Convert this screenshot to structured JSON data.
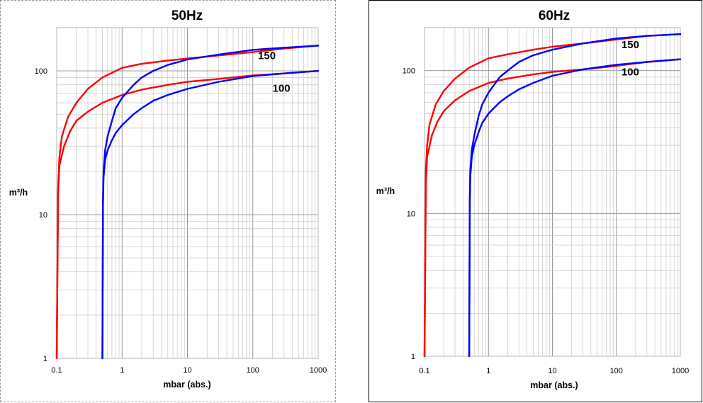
{
  "chart_data": [
    {
      "type": "line",
      "title": "50Hz",
      "xlabel": "mbar (abs.)",
      "ylabel": "m³/h",
      "xscale": "log",
      "yscale": "log",
      "xlim": [
        0.1,
        1000
      ],
      "ylim": [
        1,
        200
      ],
      "grid": true,
      "x_ticks": [
        "0.1",
        "1",
        "10",
        "100",
        "1000"
      ],
      "y_ticks": [
        "1",
        "10",
        "100"
      ],
      "annotations": [
        {
          "text": "150",
          "x": 120,
          "y": 128
        },
        {
          "text": "100",
          "x": 200,
          "y": 76
        }
      ],
      "series": [
        {
          "color": "#ff0000",
          "x": [
            0.1,
            0.105,
            0.11,
            0.12,
            0.15,
            0.2,
            0.3,
            0.5,
            1,
            2,
            5,
            10,
            30,
            100,
            300,
            1000
          ],
          "y": [
            1,
            15,
            25,
            35,
            48,
            60,
            75,
            90,
            105,
            112,
            118,
            122,
            128,
            135,
            143,
            150
          ]
        },
        {
          "color": "#ff0000",
          "x": [
            0.1,
            0.105,
            0.11,
            0.13,
            0.16,
            0.2,
            0.3,
            0.5,
            1,
            2,
            5,
            10,
            30,
            100,
            300,
            1000
          ],
          "y": [
            1,
            14,
            22,
            30,
            38,
            45,
            52,
            60,
            68,
            74,
            80,
            84,
            88,
            93,
            96,
            100
          ]
        },
        {
          "color": "#0000ff",
          "x": [
            0.5,
            0.51,
            0.52,
            0.55,
            0.6,
            0.7,
            0.8,
            1,
            1.5,
            2,
            3,
            5,
            10,
            30,
            100,
            300,
            1000
          ],
          "y": [
            1,
            12,
            20,
            28,
            35,
            45,
            55,
            65,
            80,
            90,
            100,
            110,
            120,
            130,
            140,
            145,
            150
          ]
        },
        {
          "color": "#0000ff",
          "x": [
            0.5,
            0.51,
            0.52,
            0.55,
            0.6,
            0.7,
            0.8,
            1,
            1.5,
            2,
            3,
            5,
            10,
            30,
            100,
            300,
            1000
          ],
          "y": [
            1,
            12,
            18,
            24,
            28,
            33,
            37,
            42,
            50,
            55,
            62,
            68,
            75,
            84,
            92,
            96,
            100
          ]
        }
      ]
    },
    {
      "type": "line",
      "title": "60Hz",
      "xlabel": "mbar (abs.)",
      "ylabel": "m³/h",
      "xscale": "log",
      "yscale": "log",
      "xlim": [
        0.1,
        1000
      ],
      "ylim": [
        1,
        200
      ],
      "grid": true,
      "x_ticks": [
        "0.1",
        "1",
        "10",
        "100",
        "1000"
      ],
      "y_ticks": [
        "1",
        "10",
        "100"
      ],
      "annotations": [
        {
          "text": "150",
          "x": 120,
          "y": 152
        },
        {
          "text": "100",
          "x": 120,
          "y": 98
        }
      ],
      "series": [
        {
          "color": "#ff0000",
          "x": [
            0.1,
            0.105,
            0.11,
            0.12,
            0.15,
            0.2,
            0.3,
            0.5,
            1,
            2,
            5,
            10,
            30,
            100,
            300,
            1000
          ],
          "y": [
            1,
            20,
            30,
            42,
            58,
            72,
            88,
            105,
            122,
            130,
            140,
            147,
            155,
            165,
            175,
            180
          ]
        },
        {
          "color": "#ff0000",
          "x": [
            0.1,
            0.105,
            0.11,
            0.13,
            0.16,
            0.2,
            0.3,
            0.5,
            1,
            2,
            5,
            10,
            30,
            100,
            300,
            1000
          ],
          "y": [
            1,
            16,
            25,
            35,
            44,
            52,
            62,
            72,
            82,
            88,
            94,
            98,
            102,
            108,
            115,
            120
          ]
        },
        {
          "color": "#0000ff",
          "x": [
            0.5,
            0.51,
            0.52,
            0.55,
            0.6,
            0.7,
            0.8,
            1,
            1.5,
            2,
            3,
            5,
            10,
            30,
            100,
            300,
            1000
          ],
          "y": [
            1,
            12,
            20,
            28,
            35,
            48,
            58,
            70,
            90,
            100,
            115,
            128,
            140,
            155,
            168,
            175,
            180
          ]
        },
        {
          "color": "#0000ff",
          "x": [
            0.5,
            0.51,
            0.52,
            0.55,
            0.6,
            0.7,
            0.8,
            1,
            1.5,
            2,
            3,
            5,
            10,
            30,
            100,
            300,
            1000
          ],
          "y": [
            1,
            12,
            18,
            25,
            30,
            37,
            43,
            50,
            60,
            66,
            74,
            82,
            92,
            102,
            110,
            115,
            120
          ]
        }
      ]
    }
  ]
}
